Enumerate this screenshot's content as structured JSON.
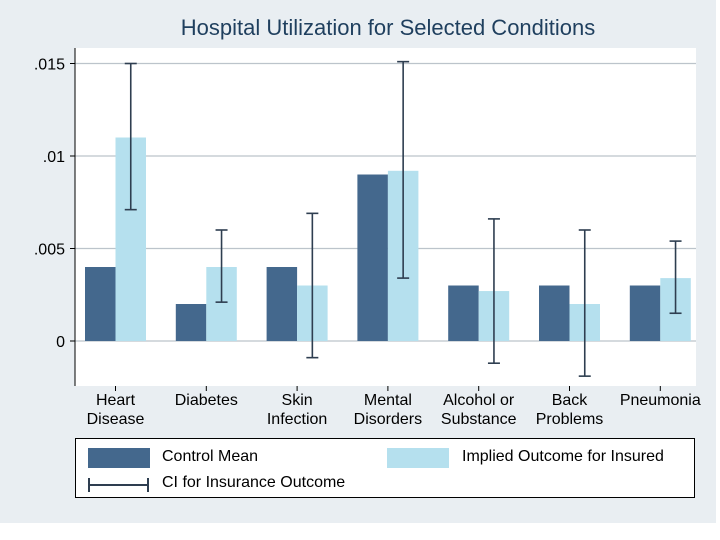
{
  "chart_data": {
    "type": "bar",
    "title": "Hospital Utilization for Selected Conditions",
    "categories": [
      [
        "Heart",
        "Disease"
      ],
      [
        "Diabetes"
      ],
      [
        "Skin",
        "Infection"
      ],
      [
        "Mental",
        "Disorders"
      ],
      [
        "Alcohol or",
        "Substance"
      ],
      [
        "Back",
        "Problems"
      ],
      [
        "Pneumonia"
      ]
    ],
    "series": [
      {
        "name": "Control Mean",
        "color": "#44688d",
        "values": [
          0.004,
          0.002,
          0.004,
          0.009,
          0.003,
          0.003,
          0.003
        ]
      },
      {
        "name": "Implied Outcome for Insured",
        "color": "#b5e0ee",
        "values": [
          0.011,
          0.004,
          0.003,
          0.0092,
          0.0027,
          0.002,
          0.0034
        ]
      }
    ],
    "ci": {
      "name": "CI for Insurance Outcome",
      "color": "#2e3e50",
      "low": [
        0.0071,
        0.0021,
        -0.0009,
        0.0034,
        -0.0012,
        -0.0019,
        0.0015
      ],
      "high": [
        0.015,
        0.006,
        0.0069,
        0.0151,
        0.0066,
        0.006,
        0.0054
      ]
    },
    "yticks": [
      0,
      0.005,
      0.01,
      0.015
    ],
    "ytick_labels": [
      "0",
      ".005",
      ".01",
      ".015"
    ],
    "ylim": [
      -0.0025,
      0.0167
    ],
    "xlabel": "",
    "ylabel": "",
    "grid": true,
    "legend": "bottom"
  },
  "legend": {
    "control_label": "Control Mean",
    "insured_label": "Implied Outcome for Insured",
    "ci_label": "CI for Insurance Outcome"
  }
}
